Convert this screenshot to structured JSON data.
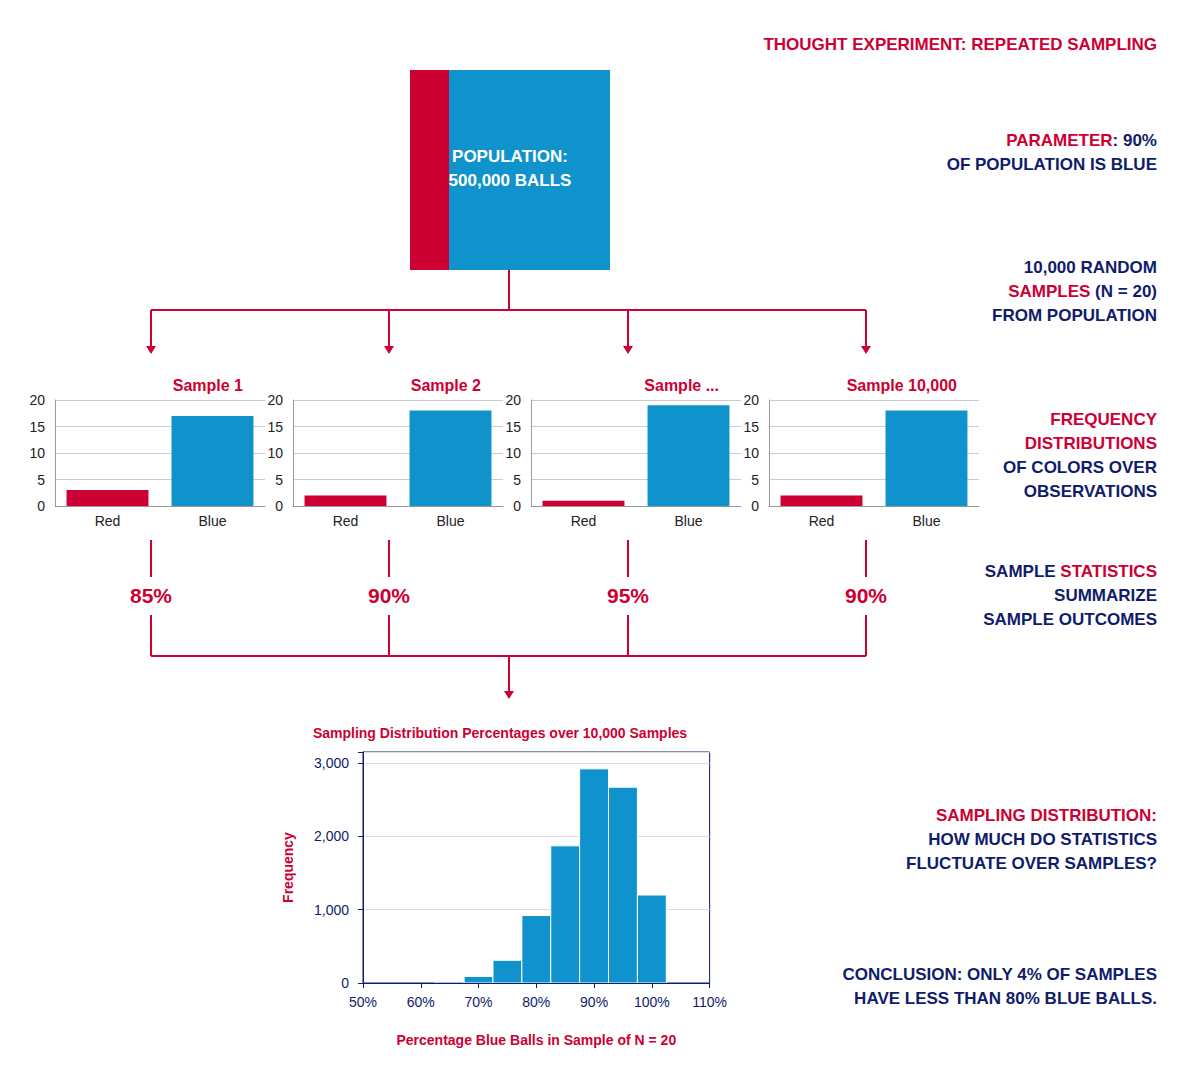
{
  "title": {
    "text": "THOUGHT EXPERIMENT: REPEATED SAMPLING",
    "color": "#cc0033"
  },
  "population": {
    "lines": [
      "POPULATION:",
      "500,000 BALLS"
    ],
    "colors": [
      "#cc0033",
      "#1092cd"
    ]
  },
  "notes": [
    {
      "lines": [
        [
          {
            "text": "PARAMETER",
            "color": "#cc0033"
          },
          {
            "text": ": 90%",
            "color": "#0f1c6b"
          }
        ],
        [
          {
            "text": "OF POPULATION IS BLUE",
            "color": "#0f1c6b"
          }
        ]
      ]
    },
    {
      "lines": [
        [
          {
            "text": "10,000 RANDOM",
            "color": "#0f1c6b"
          }
        ],
        [
          {
            "text": "SAMPLES",
            "color": "#cc0033"
          },
          {
            "text": " (N = 20)",
            "color": "#0f1c6b"
          }
        ],
        [
          {
            "text": "FROM POPULATION",
            "color": "#0f1c6b"
          }
        ]
      ]
    },
    {
      "lines": [
        [
          {
            "text": "FREQUENCY",
            "color": "#cc0033"
          }
        ],
        [
          {
            "text": "DISTRIBUTIONS",
            "color": "#cc0033"
          }
        ],
        [
          {
            "text": "OF COLORS OVER",
            "color": "#0f1c6b"
          }
        ],
        [
          {
            "text": "OBSERVATIONS",
            "color": "#0f1c6b"
          }
        ]
      ]
    },
    {
      "lines": [
        [
          {
            "text": "SAMPLE ",
            "color": "#0f1c6b"
          },
          {
            "text": "STATISTICS",
            "color": "#cc0033"
          }
        ],
        [
          {
            "text": "SUMMARIZE",
            "color": "#0f1c6b"
          }
        ],
        [
          {
            "text": "SAMPLE OUTCOMES",
            "color": "#0f1c6b"
          }
        ]
      ]
    },
    {
      "lines": [
        [
          {
            "text": "SAMPLING DISTRIBUTION:",
            "color": "#cc0033"
          }
        ],
        [
          {
            "text": "HOW MUCH DO STATISTICS",
            "color": "#0f1c6b"
          }
        ],
        [
          {
            "text": "FLUCTUATE OVER SAMPLES?",
            "color": "#0f1c6b"
          }
        ]
      ]
    },
    {
      "lines": [
        [
          {
            "text": "CONCLUSION: ONLY 4% OF SAMPLES",
            "color": "#0f1c6b"
          }
        ],
        [
          {
            "text": "HAVE LESS THAN 80% BLUE BALLS.",
            "color": "#0f1c6b"
          }
        ]
      ]
    }
  ],
  "statistics": [
    "85%",
    "90%",
    "95%",
    "90%"
  ],
  "chart_data": [
    {
      "type": "bar",
      "title": "Sample 1",
      "categories": [
        "Red",
        "Blue"
      ],
      "values": [
        3,
        17
      ],
      "colors": [
        "#cc0033",
        "#1092cd"
      ],
      "ylim": [
        0,
        20
      ],
      "yticks": [
        0,
        5,
        10,
        15,
        20
      ],
      "grid": true
    },
    {
      "type": "bar",
      "title": "Sample 2",
      "categories": [
        "Red",
        "Blue"
      ],
      "values": [
        2,
        18
      ],
      "colors": [
        "#cc0033",
        "#1092cd"
      ],
      "ylim": [
        0,
        20
      ],
      "yticks": [
        0,
        5,
        10,
        15,
        20
      ],
      "grid": true
    },
    {
      "type": "bar",
      "title": "Sample ...",
      "categories": [
        "Red",
        "Blue"
      ],
      "values": [
        1,
        19
      ],
      "colors": [
        "#cc0033",
        "#1092cd"
      ],
      "ylim": [
        0,
        20
      ],
      "yticks": [
        0,
        5,
        10,
        15,
        20
      ],
      "grid": true
    },
    {
      "type": "bar",
      "title": "Sample 10,000",
      "categories": [
        "Red",
        "Blue"
      ],
      "values": [
        2,
        18
      ],
      "colors": [
        "#cc0033",
        "#1092cd"
      ],
      "ylim": [
        0,
        20
      ],
      "yticks": [
        0,
        5,
        10,
        15,
        20
      ],
      "grid": true
    },
    {
      "type": "histogram",
      "title": "Sampling Distribution Percentages over 10,000 Samples",
      "xlabel": "Percentage Blue Balls in Sample of N = 20",
      "ylabel": "Frequency",
      "bins": [
        62.5,
        67.5,
        72.5,
        77.5,
        82.5,
        87.5,
        92.5,
        97.5,
        102.5
      ],
      "values": [
        20,
        90,
        310,
        920,
        1870,
        2920,
        2670,
        1200
      ],
      "color": "#1092cd",
      "xlim": [
        50,
        110
      ],
      "xticks": [
        {
          "value": 50,
          "label": "50%"
        },
        {
          "value": 60,
          "label": "60%"
        },
        {
          "value": 70,
          "label": "70%"
        },
        {
          "value": 80,
          "label": "80%"
        },
        {
          "value": 90,
          "label": "90%"
        },
        {
          "value": 100,
          "label": "100%"
        },
        {
          "value": 110,
          "label": "110%"
        }
      ],
      "ylim": [
        0,
        3150
      ],
      "yticks": [
        0,
        {
          "value": 1000,
          "label": "1,000"
        },
        {
          "value": 2000,
          "label": "2,000"
        },
        {
          "value": 3000,
          "label": "3,000"
        }
      ],
      "grid": true
    }
  ]
}
